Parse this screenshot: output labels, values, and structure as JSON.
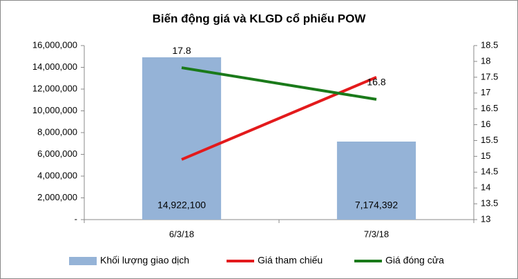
{
  "chart_data": {
    "type": "combo",
    "title": "Biến động giá và KLGD cổ phiếu POW",
    "categories": [
      "6/3/18",
      "7/3/18"
    ],
    "series": [
      {
        "name": "Khối lượng giao dịch",
        "type": "bar",
        "color": "#95b3d7",
        "values": [
          14922100,
          7174392
        ],
        "value_labels": [
          "14,922,100",
          "7,174,392"
        ]
      },
      {
        "name": "Giá tham chiếu",
        "type": "line",
        "axis": "y2",
        "color": "#e31a1c",
        "values": [
          14.9,
          17.5
        ]
      },
      {
        "name": "Giá đóng cửa",
        "type": "line",
        "axis": "y2",
        "color": "#1a7a1a",
        "values": [
          17.8,
          16.8
        ],
        "data_labels": true
      }
    ],
    "ylim": [
      0,
      16000000
    ],
    "yticks": [
      {
        "value": 0,
        "label": "-"
      },
      {
        "value": 2000000,
        "label": "2,000,000"
      },
      {
        "value": 4000000,
        "label": "4,000,000"
      },
      {
        "value": 6000000,
        "label": "6,000,000"
      },
      {
        "value": 8000000,
        "label": "8,000,000"
      },
      {
        "value": 10000000,
        "label": "10,000,000"
      },
      {
        "value": 12000000,
        "label": "12,000,000"
      },
      {
        "value": 14000000,
        "label": "14,000,000"
      },
      {
        "value": 16000000,
        "label": "16,000,000"
      }
    ],
    "y2lim": [
      13,
      18.5
    ],
    "y2ticks": [
      13,
      13.5,
      14,
      14.5,
      15,
      15.5,
      16,
      16.5,
      17,
      17.5,
      18,
      18.5
    ],
    "legend": "bottom"
  }
}
